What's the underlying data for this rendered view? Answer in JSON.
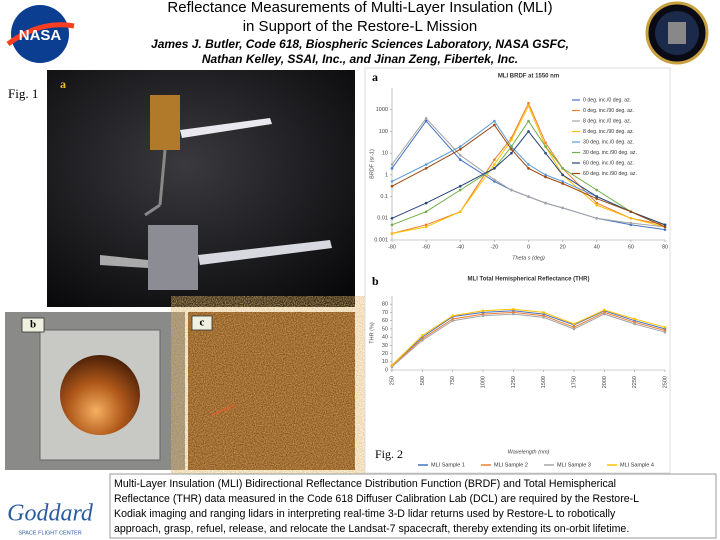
{
  "header": {
    "logo_text": "NASA",
    "title_lines": [
      "Reflectance Measurements of Multi-Layer Insulation (MLI)",
      "in Support of the Restore-L Mission"
    ],
    "author_lines": [
      "James J. Butler, Code 618, Biospheric Sciences Laboratory, NASA GSFC,",
      "Nathan Kelley, SSAI, Inc., and Jinan Zeng, Fibertek, Inc."
    ]
  },
  "figure1": {
    "label": "Fig. 1",
    "panels": [
      "a",
      "b",
      "c"
    ]
  },
  "figure2": {
    "label": "Fig. 2",
    "panels": [
      "a",
      "b"
    ]
  },
  "chart_data": [
    {
      "type": "line",
      "title": "MLI BRDF at 1550 nm",
      "x_label": "Theta s (deg)",
      "y_label": "BRDF (sr-1)",
      "log_y": true,
      "legend": "right",
      "x": [
        -80,
        -60,
        -40,
        -20,
        -10,
        0,
        10,
        20,
        40,
        60,
        80
      ],
      "xlim": [
        -80,
        80
      ],
      "xticks": [
        -80,
        -60,
        -40,
        -20,
        0,
        20,
        40,
        60,
        80
      ],
      "ylim": [
        0.001,
        10000
      ],
      "yticks": [
        0.001,
        0.01,
        0.1,
        1,
        10,
        100,
        1000
      ],
      "series": [
        {
          "name": "0 deg. inc./0 deg. az.",
          "color": "#4472c4",
          "values": [
            2,
            300,
            5,
            0.5,
            0.2,
            0.1,
            0.05,
            0.03,
            0.01,
            0.005,
            0.003
          ]
        },
        {
          "name": "0 deg. inc./90 deg. az.",
          "color": "#ed7d31",
          "values": [
            0.002,
            0.005,
            0.02,
            5,
            50,
            2000,
            30,
            2,
            0.05,
            0.01,
            0.005
          ]
        },
        {
          "name": "8 deg. inc./0 deg. az.",
          "color": "#a5a5a5",
          "values": [
            3,
            400,
            8,
            0.6,
            0.2,
            0.1,
            0.05,
            0.03,
            0.01,
            0.006,
            0.004
          ]
        },
        {
          "name": "8 deg. inc./90 deg. az.",
          "color": "#ffc000",
          "values": [
            0.002,
            0.004,
            0.02,
            3,
            40,
            1500,
            20,
            1,
            0.04,
            0.01,
            0.004
          ]
        },
        {
          "name": "30 deg. inc./0 deg. az.",
          "color": "#5b9bd5",
          "values": [
            0.5,
            3,
            20,
            300,
            20,
            3,
            1,
            0.5,
            0.1,
            0.02,
            0.005
          ]
        },
        {
          "name": "30 deg. inc./90 deg. az.",
          "color": "#70ad47",
          "values": [
            0.005,
            0.02,
            0.2,
            2,
            20,
            300,
            20,
            2,
            0.2,
            0.02,
            0.005
          ]
        },
        {
          "name": "60 deg. inc./0 deg. az.",
          "color": "#264478",
          "values": [
            0.01,
            0.05,
            0.3,
            2,
            10,
            100,
            10,
            1,
            0.1,
            0.02,
            0.005
          ]
        },
        {
          "name": "60 deg. inc./90 deg. az.",
          "color": "#9e480e",
          "values": [
            0.3,
            2,
            15,
            200,
            15,
            2,
            0.8,
            0.4,
            0.08,
            0.02,
            0.004
          ]
        }
      ]
    },
    {
      "type": "line",
      "title": "MLI Total Hemispherical Reflectance (THR)",
      "x_label": "Wavelength (nm)",
      "y_label": "THR (%)",
      "log_y": false,
      "legend": "bottom",
      "x": [
        250,
        500,
        750,
        1000,
        1250,
        1500,
        1750,
        2000,
        2250,
        2500
      ],
      "xlim": [
        250,
        2500
      ],
      "xticks": [
        250,
        500,
        750,
        1000,
        1250,
        1500,
        1750,
        2000,
        2250,
        2500
      ],
      "ylim": [
        0,
        90
      ],
      "yticks": [
        0,
        10,
        20,
        30,
        40,
        50,
        60,
        70,
        80
      ],
      "series": [
        {
          "name": "MLI Sample 1",
          "color": "#4472c4",
          "values": [
            5,
            40,
            65,
            70,
            72,
            68,
            55,
            72,
            60,
            50
          ]
        },
        {
          "name": "MLI Sample 2",
          "color": "#ed7d31",
          "values": [
            5,
            38,
            62,
            68,
            70,
            66,
            52,
            70,
            58,
            48
          ]
        },
        {
          "name": "MLI Sample 3",
          "color": "#a5a5a5",
          "values": [
            4,
            36,
            60,
            66,
            68,
            64,
            50,
            68,
            56,
            46
          ]
        },
        {
          "name": "MLI Sample 4",
          "color": "#ffc000",
          "values": [
            6,
            42,
            66,
            72,
            74,
            70,
            56,
            73,
            62,
            52
          ]
        }
      ]
    }
  ],
  "caption_lines": [
    "Multi-Layer Insulation (MLI) Bidirectional Reflectance Distribution Function (BRDF) and Total Hemispherical",
    "Reflectance (THR) data measured in the Code 618 Diffuser Calibration Lab (DCL) are required by the Restore-L",
    "Kodiak imaging and ranging lidars in interpreting real-time 3-D lidar returns used by Restore-L to robotically",
    "approach, grasp, refuel, release, and relocate the Landsat-7 spacecraft, thereby extending its on-orbit lifetime."
  ],
  "footer_logo": {
    "text": "Goddard",
    "subtext": "SPACE FLIGHT CENTER"
  }
}
